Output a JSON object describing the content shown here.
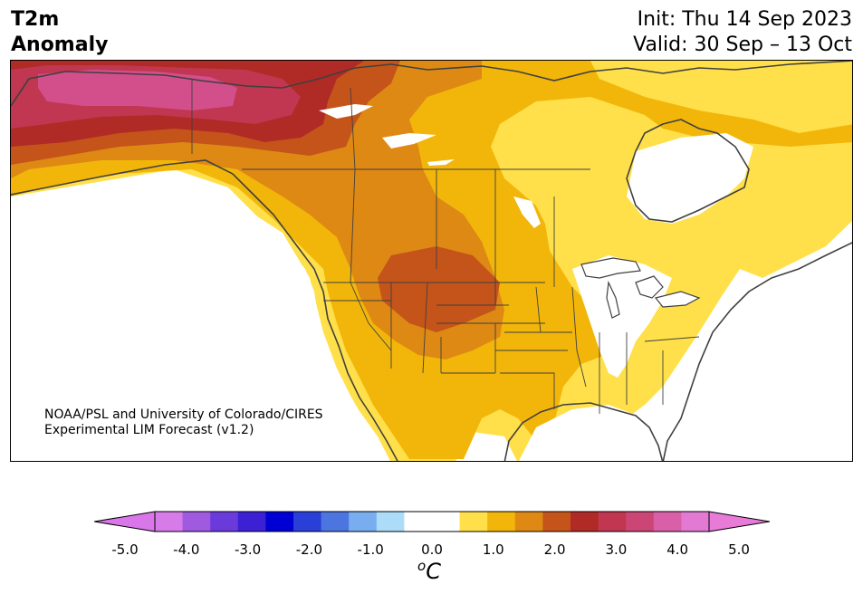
{
  "header": {
    "title_line1": "T2m",
    "title_line2": "Anomaly",
    "init": "Init: Thu 14 Sep 2023",
    "valid": "Valid: 30 Sep – 13 Oct"
  },
  "credit": {
    "line1": "NOAA/PSL and University of Colorado/CIRES",
    "line2": "Experimental LIM Forecast (v1.2)"
  },
  "colorbar": {
    "ticks": [
      "-5.0",
      "-4.0",
      "-3.0",
      "-2.0",
      "-1.0",
      "0.0",
      "1.0",
      "2.0",
      "3.0",
      "4.0",
      "5.0"
    ],
    "unit_sup": "o",
    "unit_main": "C",
    "colors": [
      "#d77be8",
      "#a05ae0",
      "#6a3adb",
      "#3b20d4",
      "#0000d4",
      "#2a3ed8",
      "#4c75e0",
      "#78aef0",
      "#acdcf8",
      "#ffffff",
      "#ffffff",
      "#ffe04a",
      "#f2b60a",
      "#dd8914",
      "#c4541a",
      "#b02a26",
      "#c13650",
      "#cc4675",
      "#d960a8",
      "#e27ad4"
    ],
    "extend_low": "#d977ea",
    "extend_high": "#e87ad8"
  },
  "legend_colors": {
    "pink_max": "#d24f8c",
    "magenta": "#c13650",
    "red": "#b02a26",
    "dark_orange": "#c4541a",
    "orange": "#dd8914",
    "gold": "#f2b60a",
    "yellow": "#ffe04a"
  }
}
